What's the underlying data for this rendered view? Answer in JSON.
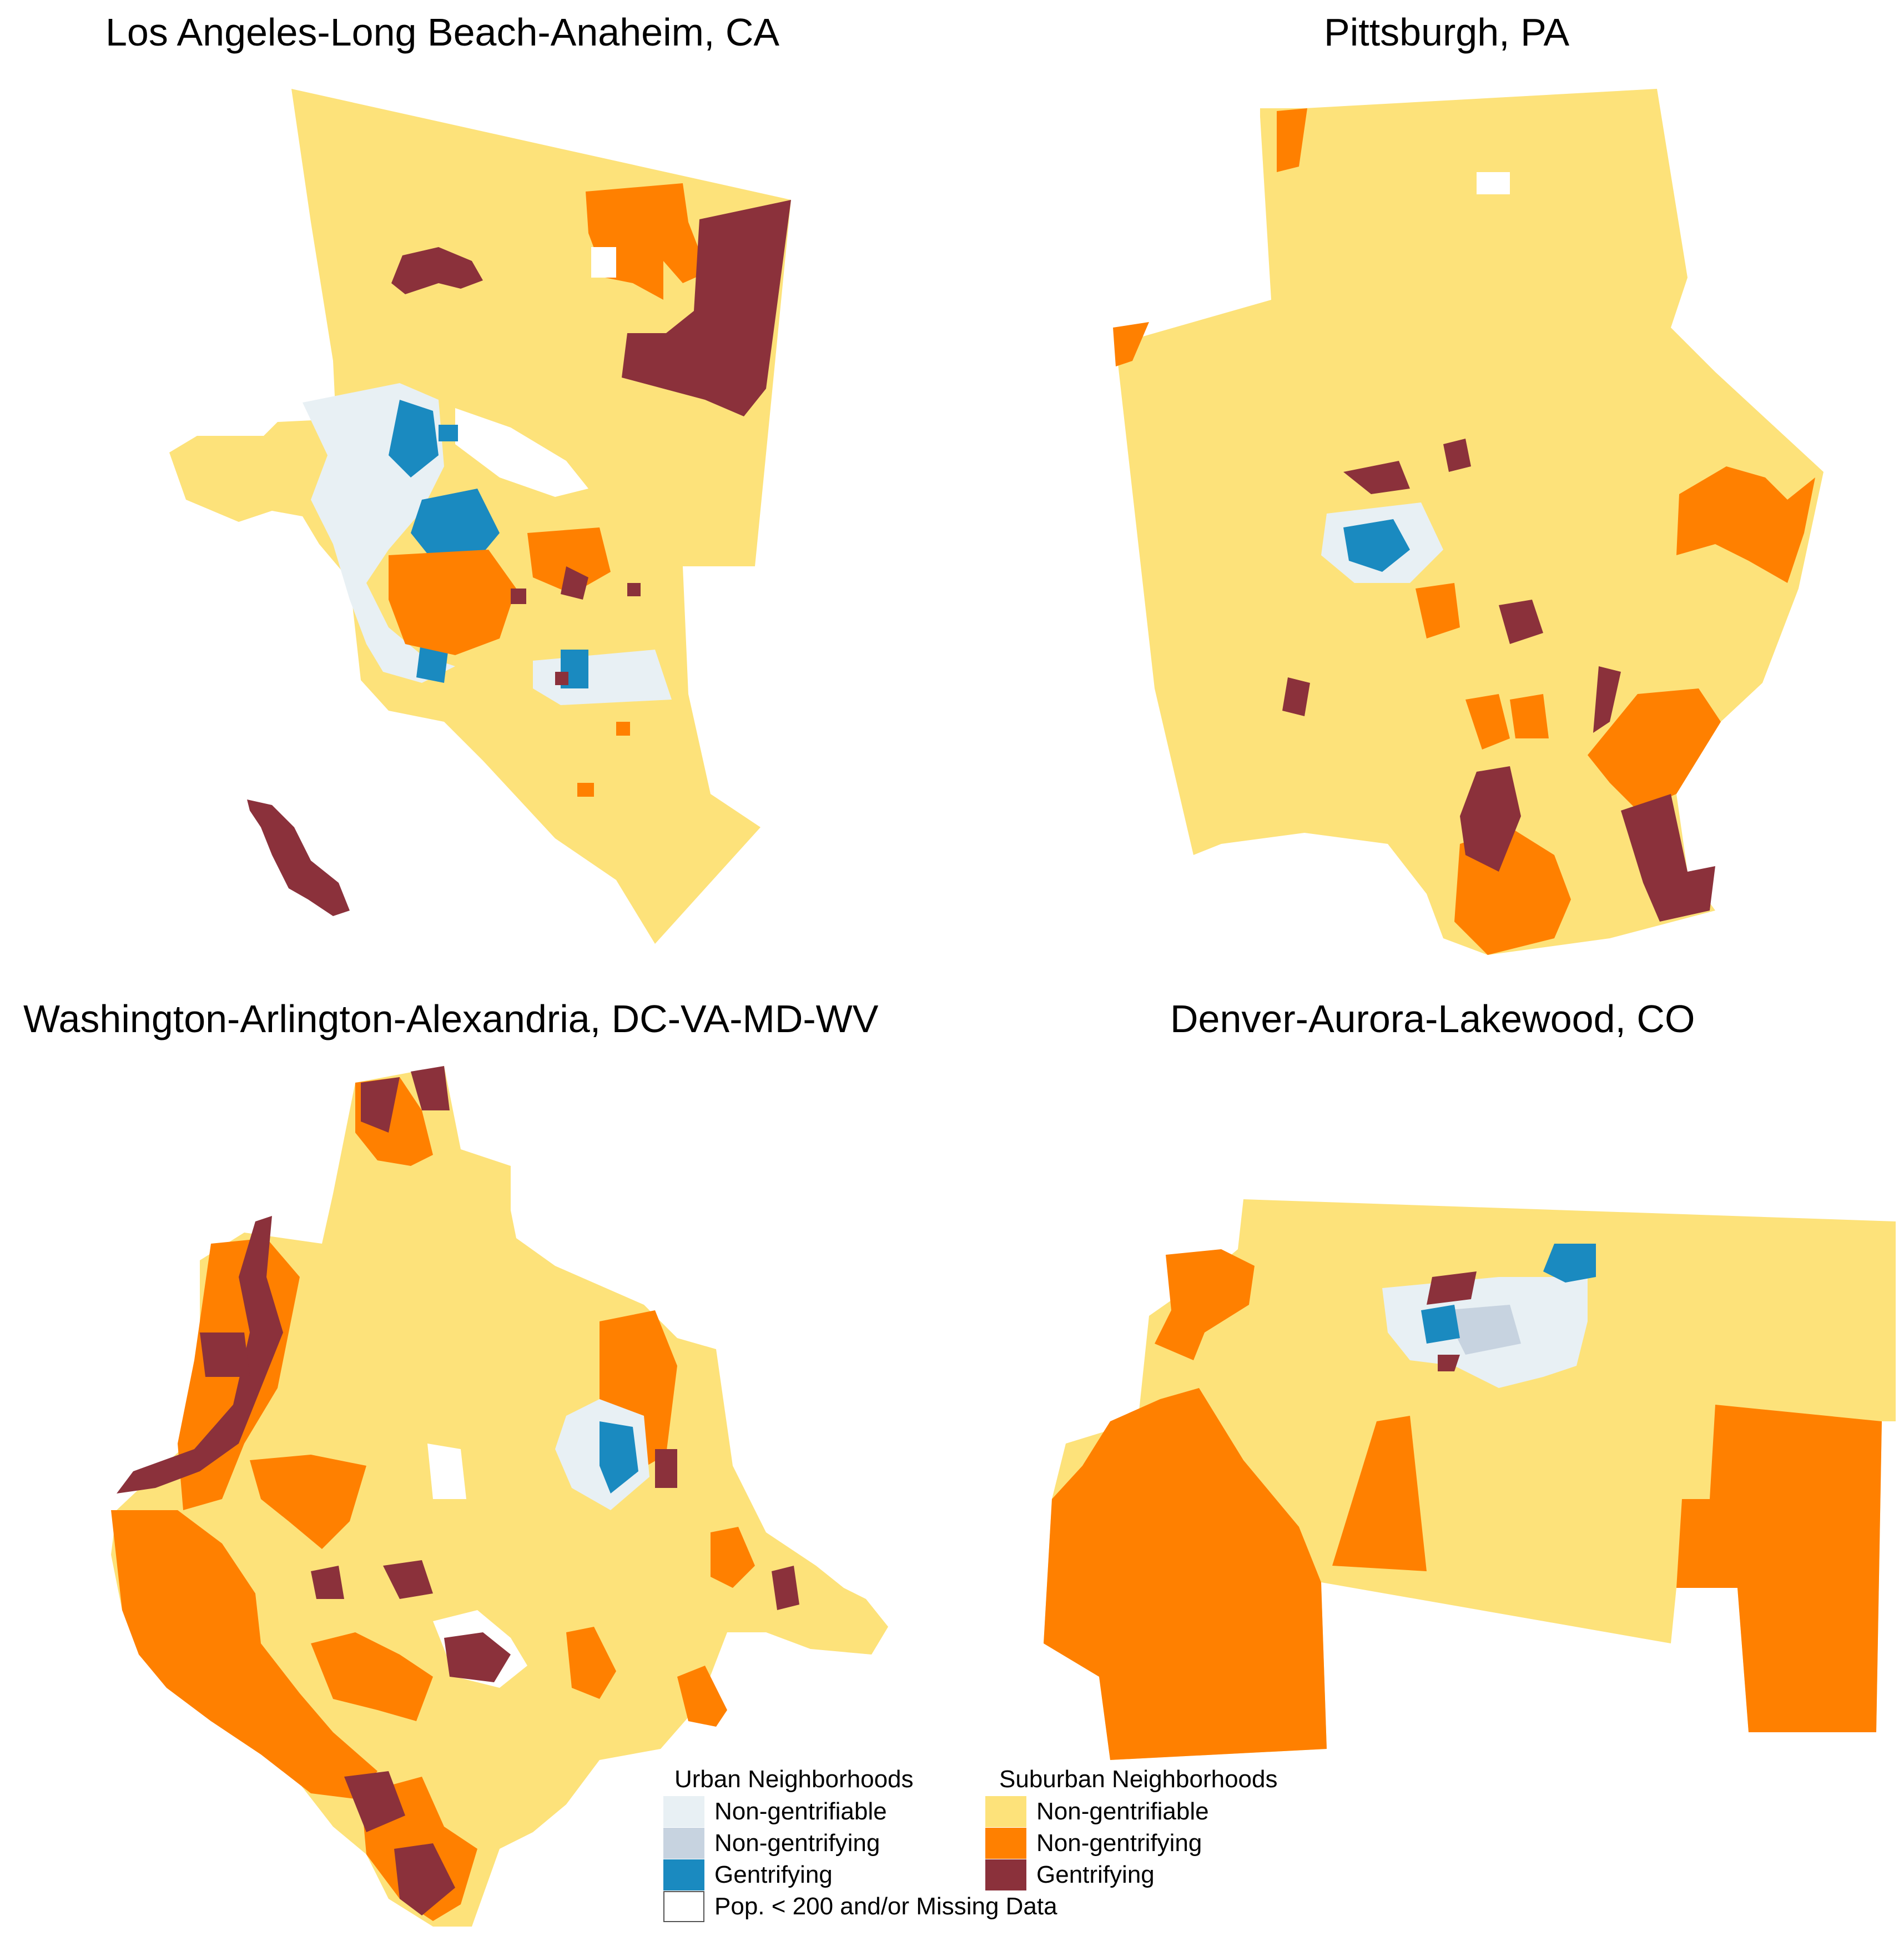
{
  "panels": [
    {
      "title": "Los Angeles-Long Beach-Anaheim, CA"
    },
    {
      "title": "Pittsburgh, PA"
    },
    {
      "title": "Washington-Arlington-Alexandria, DC-VA-MD-WV"
    },
    {
      "title": "Denver-Aurora-Lakewood, CO"
    }
  ],
  "legend": {
    "urban": {
      "heading": "Urban Neighborhoods",
      "items": [
        {
          "label": "Non-gentrifiable",
          "color": "#e8f0f4"
        },
        {
          "label": "Non-gentrifying",
          "color": "#c7d3e0"
        },
        {
          "label": "Gentrifying",
          "color": "#1a8ac0"
        },
        {
          "label": "Pop. < 200 and/or Missing Data",
          "color": "#ffffff"
        }
      ]
    },
    "suburban": {
      "heading": "Suburban Neighborhoods",
      "items": [
        {
          "label": "Non-gentrifiable",
          "color": "#fde27a"
        },
        {
          "label": "Non-gentrifying",
          "color": "#ff8000"
        },
        {
          "label": "Gentrifying",
          "color": "#8b313b"
        }
      ]
    }
  }
}
